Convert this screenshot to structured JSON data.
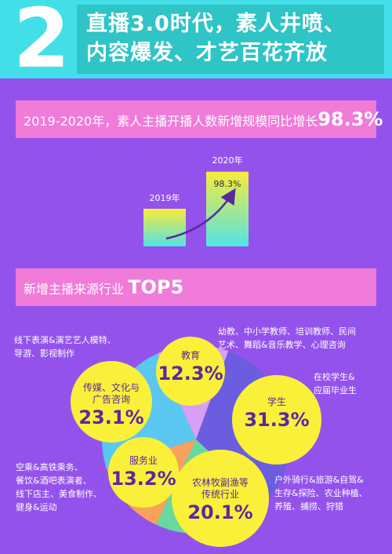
{
  "header": {
    "number": "2",
    "line1": "直播3.0时代，素人井喷、",
    "line2": "内容爆发、才艺百花齐放"
  },
  "band1": {
    "text": "2019-2020年，素人主播开播人数新增规模同比增长",
    "value": "98.3%"
  },
  "band2": {
    "text": "新增主播来源行业",
    "value": "TOP5"
  },
  "colors": {
    "background": "#9452ec",
    "header": "#43dfe9",
    "band": "#f07bd9",
    "bubble": "#faf03a",
    "bubble_text": "#5a28a0"
  },
  "chart_data": [
    {
      "type": "bar",
      "categories": [
        "2019年",
        "2020年"
      ],
      "values": [
        1,
        1.983
      ],
      "annotations": [
        "98.3%"
      ]
    },
    {
      "type": "pie",
      "labels": [
        "学生",
        "农林牧副渔等\n传统行业",
        "服务业",
        "传媒、文化与\n广告咨询",
        "教育"
      ],
      "values": [
        31.3,
        20.1,
        13.2,
        23.1,
        12.3
      ],
      "value_labels": [
        "31.3%",
        "20.1%",
        "13.2%",
        "23.1%",
        "12.3%"
      ],
      "slice_colors": [
        "#6b5de0",
        "#67d9a0",
        "#f6a25a",
        "#5ac8f0",
        "#d8a0f4"
      ],
      "notes": [
        "在校学生&\n应届毕业生",
        "户外骑行&旅游&自驾&\n生存&探险、农业种植、\n养殖、捕捞、狩猎",
        "空乘&高铁乘务、\n餐饮&酒吧表演者、\n线下店主、美食制作、\n健身&运动",
        "线下表演&演艺艺人模特、\n导游、影视制作",
        "幼教、中小学教师、培训教师、民间\n艺术、舞蹈&音乐教学、心理咨询"
      ]
    }
  ]
}
